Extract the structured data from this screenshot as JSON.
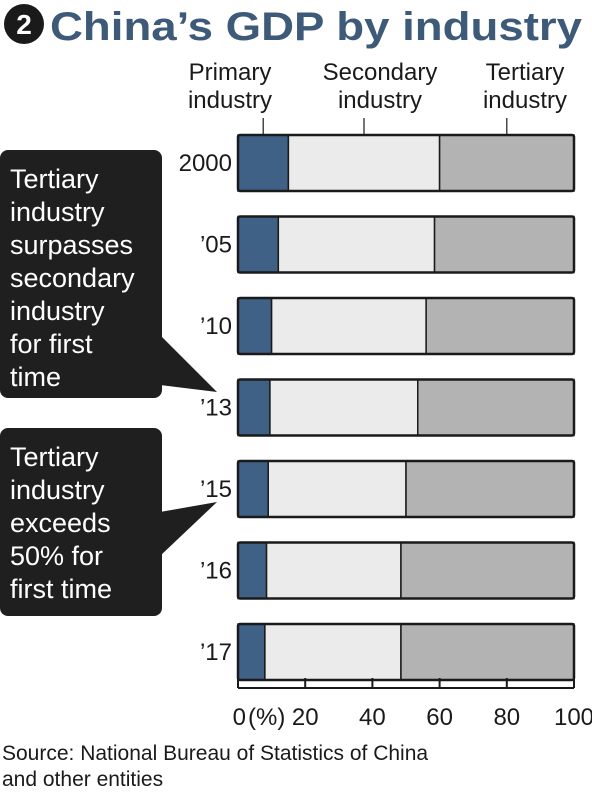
{
  "title": {
    "badge": "2",
    "text": "China’s GDP by industry"
  },
  "colors": {
    "title": "#3d5a78",
    "primary": "#3f6185",
    "secondary": "#ebebeb",
    "tertiary": "#b3b3b3",
    "callout_bg": "#1f1f1f",
    "outline": "#1a1a1a"
  },
  "chart_data": {
    "type": "bar",
    "orientation": "horizontal",
    "stacked": true,
    "categories": [
      "2000",
      "’05",
      "’10",
      "’13",
      "’15",
      "’16",
      "’17"
    ],
    "series": [
      {
        "name": "Primary industry",
        "values": [
          15,
          12,
          10,
          9.5,
          9,
          8.5,
          8
        ]
      },
      {
        "name": "Secondary industry",
        "values": [
          45,
          46.5,
          46,
          44,
          41,
          40,
          40.5
        ]
      },
      {
        "name": "Tertiary industry",
        "values": [
          40,
          41.5,
          44,
          46.5,
          50,
          51.5,
          51.5
        ]
      }
    ],
    "xlim": [
      0,
      100
    ],
    "xticks": [
      "0",
      "20",
      "40",
      "60",
      "80",
      "100"
    ],
    "xunit": "(%)",
    "legend_lines": [
      [
        "Primary",
        "industry"
      ],
      [
        "Secondary",
        "industry"
      ],
      [
        "Tertiary",
        "industry"
      ]
    ],
    "annotations": [
      {
        "target": "’13",
        "lines": [
          "Tertiary",
          "industry",
          "surpasses",
          "secondary",
          "industry",
          "for first",
          "time"
        ]
      },
      {
        "target": "’15",
        "lines": [
          "Tertiary",
          "industry",
          "exceeds",
          "50% for",
          "first time"
        ]
      }
    ]
  },
  "source": {
    "lines": [
      "Source: National Bureau of Statistics of China",
      "and other entities"
    ]
  }
}
